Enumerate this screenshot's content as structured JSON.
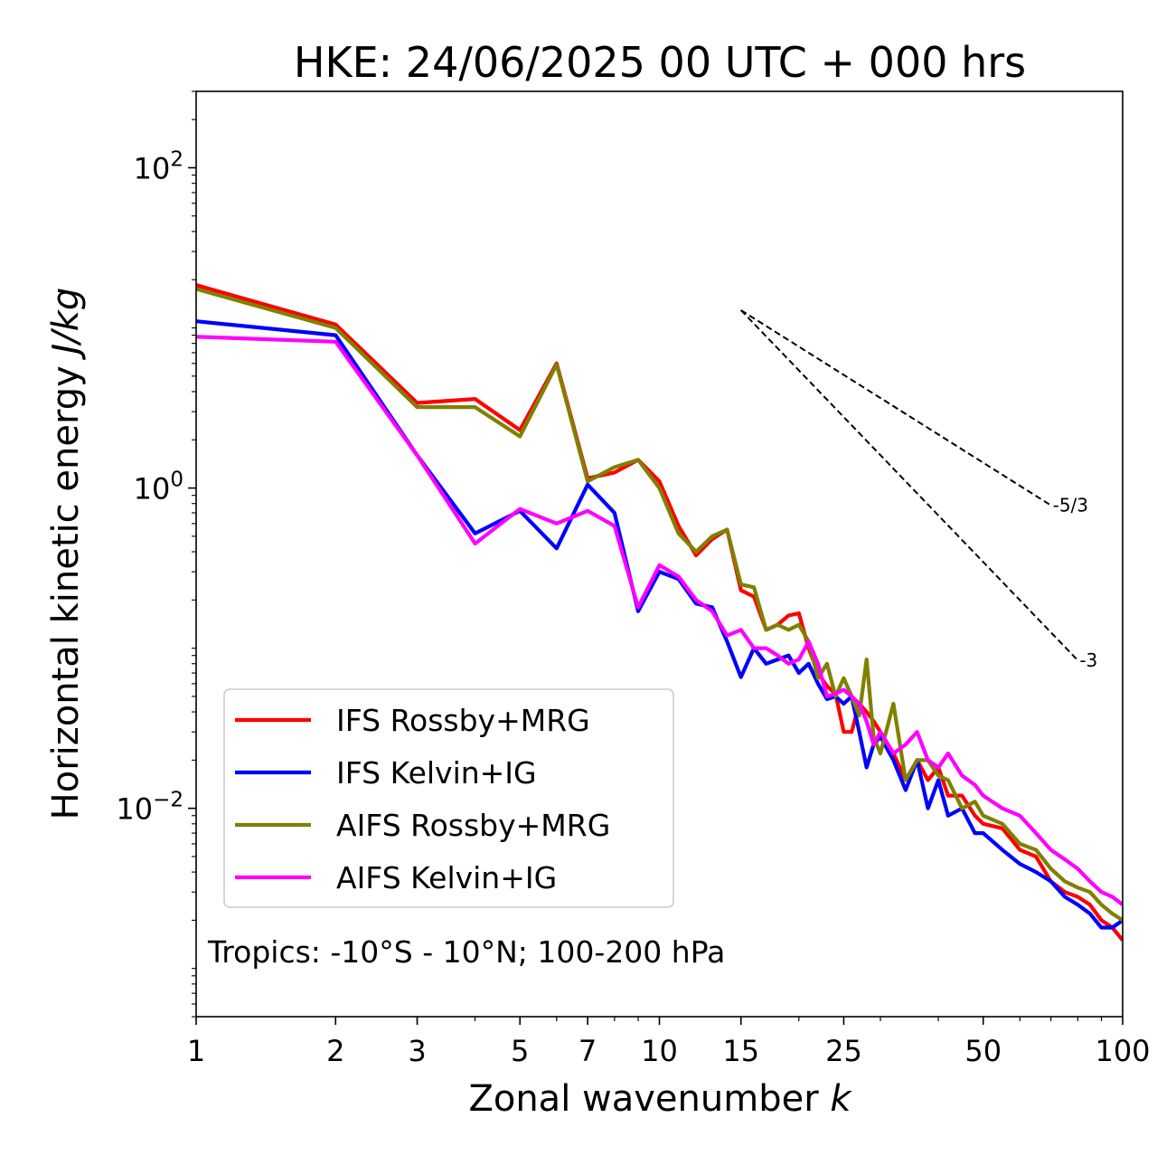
{
  "chart_data": {
    "type": "line",
    "title": "HKE: 24/06/2025 00 UTC + 000 hrs",
    "xlabel": "Zonal wavenumber",
    "xlabel_var": "k",
    "ylabel": "Horizontal kinetic energy",
    "ylabel_unit": "J/kg",
    "xscale": "log",
    "yscale": "log",
    "xlim": [
      1,
      100
    ],
    "ylim": [
      0.0005,
      300
    ],
    "xticks": [
      1,
      2,
      3,
      5,
      7,
      10,
      15,
      25,
      50,
      100
    ],
    "xtick_labels": [
      "1",
      "2",
      "3",
      "5",
      "7",
      "10",
      "15",
      "25",
      "50",
      "100"
    ],
    "yticks": [
      {
        "value": 100,
        "base": "10",
        "exp": "2"
      },
      {
        "value": 1,
        "base": "10",
        "exp": "0"
      },
      {
        "value": 0.01,
        "base": "10",
        "exp": "−2"
      }
    ],
    "legend_position": "lower-left",
    "annotation": "Tropics: -10°S - 10°N; 100-200 hPa",
    "slope_lines": [
      {
        "label": "-5/3",
        "x": [
          15,
          70
        ],
        "y": [
          12.9,
          0.78
        ]
      },
      {
        "label": "-3",
        "x": [
          15,
          80
        ],
        "y": [
          12.9,
          0.084
        ]
      }
    ],
    "series": [
      {
        "name": "IFS Rossby+MRG",
        "color": "#ff0000",
        "x": [
          1,
          2,
          3,
          4,
          5,
          6,
          7,
          8,
          9,
          10,
          11,
          12,
          13,
          14,
          15,
          16,
          17,
          18,
          19,
          20,
          21,
          22,
          23,
          24,
          25,
          26,
          27,
          28,
          29,
          30,
          32,
          34,
          36,
          38,
          40,
          42,
          45,
          48,
          50,
          55,
          60,
          65,
          70,
          75,
          80,
          85,
          90,
          95,
          100
        ],
        "y": [
          18.5,
          10.5,
          3.4,
          3.6,
          2.3,
          6.0,
          1.15,
          1.25,
          1.5,
          1.1,
          0.58,
          0.38,
          0.48,
          0.55,
          0.23,
          0.21,
          0.13,
          0.14,
          0.16,
          0.165,
          0.1,
          0.07,
          0.058,
          0.052,
          0.03,
          0.03,
          0.045,
          0.04,
          0.035,
          0.03,
          0.022,
          0.015,
          0.02,
          0.015,
          0.018,
          0.012,
          0.012,
          0.009,
          0.008,
          0.0075,
          0.0055,
          0.005,
          0.0035,
          0.003,
          0.0028,
          0.0025,
          0.002,
          0.0018,
          0.0015
        ]
      },
      {
        "name": "IFS Kelvin+IG",
        "color": "#0000ff",
        "x": [
          1,
          2,
          3,
          4,
          5,
          6,
          7,
          8,
          9,
          10,
          11,
          12,
          13,
          14,
          15,
          16,
          17,
          18,
          19,
          20,
          21,
          22,
          23,
          24,
          25,
          26,
          27,
          28,
          29,
          30,
          32,
          34,
          36,
          38,
          40,
          42,
          45,
          48,
          50,
          55,
          60,
          65,
          70,
          75,
          80,
          85,
          90,
          95,
          100
        ],
        "y": [
          11.0,
          9.0,
          1.6,
          0.52,
          0.72,
          0.42,
          1.05,
          0.7,
          0.17,
          0.3,
          0.27,
          0.19,
          0.18,
          0.11,
          0.066,
          0.1,
          0.08,
          0.085,
          0.09,
          0.07,
          0.08,
          0.06,
          0.048,
          0.05,
          0.045,
          0.05,
          0.03,
          0.018,
          0.025,
          0.028,
          0.02,
          0.013,
          0.02,
          0.01,
          0.015,
          0.009,
          0.01,
          0.007,
          0.007,
          0.0055,
          0.0045,
          0.004,
          0.0035,
          0.0028,
          0.0025,
          0.0022,
          0.0018,
          0.0018,
          0.002
        ]
      },
      {
        "name": "AIFS Rossby+MRG",
        "color": "#808000",
        "x": [
          1,
          2,
          3,
          4,
          5,
          6,
          7,
          8,
          9,
          10,
          11,
          12,
          13,
          14,
          15,
          16,
          17,
          18,
          19,
          20,
          21,
          22,
          23,
          24,
          25,
          26,
          27,
          28,
          29,
          30,
          32,
          34,
          36,
          38,
          40,
          42,
          45,
          48,
          50,
          55,
          60,
          65,
          70,
          75,
          80,
          85,
          90,
          95,
          100
        ],
        "y": [
          17.5,
          10.0,
          3.2,
          3.2,
          2.1,
          5.9,
          1.1,
          1.35,
          1.5,
          1.0,
          0.52,
          0.4,
          0.5,
          0.55,
          0.25,
          0.24,
          0.13,
          0.14,
          0.13,
          0.14,
          0.11,
          0.065,
          0.08,
          0.05,
          0.065,
          0.05,
          0.038,
          0.085,
          0.028,
          0.022,
          0.045,
          0.015,
          0.02,
          0.02,
          0.016,
          0.015,
          0.01,
          0.011,
          0.009,
          0.008,
          0.006,
          0.0055,
          0.0042,
          0.0035,
          0.0032,
          0.003,
          0.0025,
          0.0022,
          0.002
        ]
      },
      {
        "name": "AIFS Kelvin+IG",
        "color": "#ff00ff",
        "x": [
          1,
          2,
          3,
          4,
          5,
          6,
          7,
          8,
          9,
          10,
          11,
          12,
          13,
          14,
          15,
          16,
          17,
          18,
          19,
          20,
          21,
          22,
          23,
          24,
          25,
          26,
          27,
          28,
          29,
          30,
          32,
          34,
          36,
          38,
          40,
          42,
          45,
          48,
          50,
          55,
          60,
          65,
          70,
          75,
          80,
          85,
          90,
          95,
          100
        ],
        "y": [
          8.8,
          8.2,
          1.6,
          0.45,
          0.74,
          0.6,
          0.72,
          0.58,
          0.18,
          0.33,
          0.28,
          0.2,
          0.17,
          0.12,
          0.13,
          0.1,
          0.1,
          0.09,
          0.08,
          0.085,
          0.11,
          0.08,
          0.05,
          0.052,
          0.055,
          0.05,
          0.045,
          0.035,
          0.025,
          0.03,
          0.022,
          0.025,
          0.03,
          0.02,
          0.018,
          0.022,
          0.016,
          0.014,
          0.012,
          0.01,
          0.009,
          0.007,
          0.0055,
          0.0048,
          0.0042,
          0.0035,
          0.003,
          0.0028,
          0.0025
        ]
      }
    ]
  }
}
